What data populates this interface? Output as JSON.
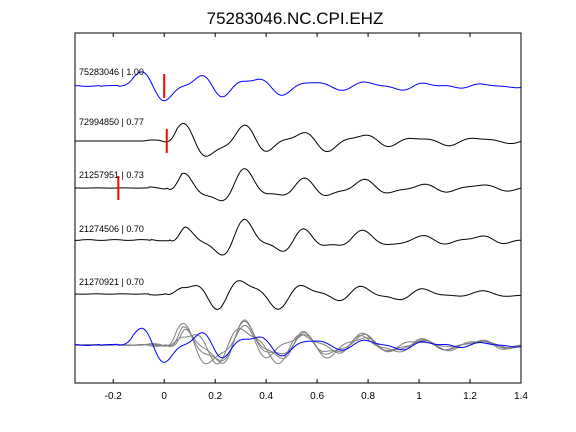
{
  "chart_data": {
    "type": "line",
    "title": "75283046.NC.CPI.EHZ",
    "xlabel": "",
    "ylabel": "",
    "xlim": [
      -0.35,
      1.4
    ],
    "x_ticks": [
      -0.2,
      0,
      0.2,
      0.4,
      0.6,
      0.8,
      1,
      1.2,
      1.4
    ],
    "x_tick_labels": [
      "-0.2",
      "0",
      "0.2",
      "0.4",
      "0.6",
      "0.8",
      "1",
      "1.2",
      "1.4"
    ],
    "grid": false,
    "legend": "none",
    "colors": {
      "reference": "#0000ff",
      "trace": "#000000",
      "overlay": "#808080",
      "pick": "#ff0000"
    },
    "series": [
      {
        "name": "75283046 | 1.00",
        "color": "#0000ff",
        "pick_time": 0.0,
        "wave": {
          "amp": 11,
          "f": 4.4,
          "d": -0.2,
          "noise": 0.3,
          "seed": 1.3
        }
      },
      {
        "name": "72994850 | 0.77",
        "color": "#000000",
        "pick_time": 0.01,
        "wave": {
          "amp": 13,
          "f": 4.3,
          "d": -0.03,
          "noise": 0.0,
          "seed": 2.1
        }
      },
      {
        "name": "21257951 | 0.73",
        "color": "#000000",
        "pick_time": -0.18,
        "wave": {
          "amp": 13,
          "f": 4.35,
          "d": -0.01,
          "noise": 0.05,
          "seed": 3.7
        }
      },
      {
        "name": "21274506 | 0.70",
        "color": "#000000",
        "pick_time": null,
        "wave": {
          "amp": 14,
          "f": 4.4,
          "d": 0.0,
          "noise": 0.25,
          "seed": 4.4
        }
      },
      {
        "name": "21270921 | 0.70",
        "color": "#000000",
        "pick_time": null,
        "wave": {
          "amp": 13,
          "f": 4.3,
          "d": -0.01,
          "noise": 0.1,
          "seed": 5.9
        }
      }
    ]
  }
}
